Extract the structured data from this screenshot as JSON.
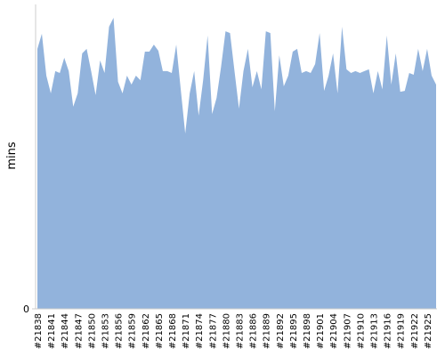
{
  "chart_data": {
    "type": "area",
    "y_label": "mins",
    "categories": [
      "#21838",
      null,
      null,
      "#21841",
      null,
      null,
      "#21844",
      null,
      null,
      "#21847",
      null,
      null,
      "#21850",
      null,
      null,
      "#21853",
      null,
      null,
      "#21856",
      null,
      null,
      "#21859",
      null,
      null,
      "#21862",
      null,
      null,
      "#21865",
      null,
      null,
      "#21868",
      null,
      null,
      "#21871",
      null,
      null,
      "#21874",
      null,
      null,
      "#21877",
      null,
      null,
      "#21880",
      null,
      null,
      "#21883",
      null,
      null,
      "#21886",
      null,
      null,
      "#21889",
      null,
      null,
      "#21892",
      null,
      null,
      "#21895",
      null,
      null,
      "#21898",
      null,
      null,
      "#21901",
      null,
      null,
      "#21904",
      null,
      null,
      "#21907",
      null,
      null,
      "#21910",
      null,
      null,
      "#21913",
      null,
      null,
      "#21916",
      null,
      null,
      "#21919",
      null,
      null,
      "#21922",
      null,
      null,
      "#21925",
      null,
      null
    ],
    "values": [
      85.4,
      90.4,
      76.6,
      70.8,
      78.1,
      77.5,
      82.5,
      78.1,
      66.4,
      70.8,
      83.9,
      85.4,
      78.1,
      70.2,
      81.6,
      77.5,
      92.7,
      95.6,
      74.6,
      70.8,
      76.6,
      73.7,
      76.6,
      75.1,
      84.5,
      84.5,
      86.8,
      84.8,
      78.1,
      78.1,
      77.5,
      86.8,
      72.1,
      57.6,
      70.8,
      78.1,
      63.5,
      75.1,
      89.8,
      64.0,
      69.3,
      79.5,
      91.2,
      90.6,
      78.1,
      65.8,
      78.1,
      85.4,
      72.8,
      78.1,
      72.1,
      91.2,
      90.6,
      64.9,
      83.3,
      73.1,
      76.6,
      84.5,
      85.4,
      77.5,
      78.1,
      77.5,
      80.4,
      90.6,
      71.6,
      76.6,
      83.9,
      70.8,
      92.7,
      78.7,
      77.5,
      78.1,
      77.5,
      78.1,
      78.7,
      70.8,
      78.1,
      72.1,
      89.8,
      73.7,
      83.9,
      71.3,
      71.6,
      77.5,
      76.9,
      85.4,
      78.1,
      85.4,
      76.6,
      73.7
    ],
    "color": "#92b3dc",
    "ylim": [
      0,
      100
    ],
    "yticks": [
      0
    ]
  }
}
